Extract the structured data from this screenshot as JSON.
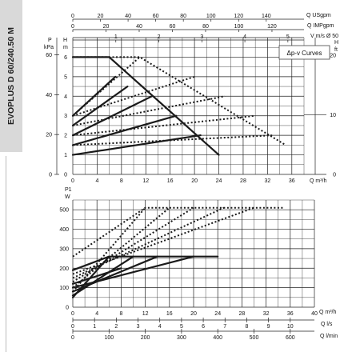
{
  "product": "EVOPLUS D 60/240.50 M",
  "legend": "Δp-v Curves",
  "top": {
    "units": {
      "usgpm": "Q USgpm",
      "impgpm": "Q IMPgpm",
      "vel": "V m/s Ø 50",
      "p": "P",
      "kpa": "kPa",
      "h": "H",
      "m": "m",
      "hft": "H",
      "ft": "ft",
      "q": "Q m³/h"
    },
    "ticks": {
      "usgpm": [
        "0",
        "20",
        "40",
        "60",
        "80",
        "100",
        "120",
        "140"
      ],
      "impgpm": [
        "0",
        "20",
        "40",
        "60",
        "80",
        "100",
        "120"
      ],
      "vel": [
        "1",
        "2",
        "3",
        "4",
        "5"
      ],
      "kpa": [
        "0",
        "20",
        "40",
        "60"
      ],
      "hm": [
        "0",
        "1",
        "2",
        "3",
        "4",
        "5",
        "6"
      ],
      "ft": [
        "0",
        "10",
        "20"
      ],
      "q": [
        "0",
        "4",
        "8",
        "12",
        "16",
        "20",
        "24",
        "28",
        "32",
        "36"
      ]
    }
  },
  "bottom": {
    "units": {
      "p1": "P1",
      "w": "W",
      "q": "Q m³/h",
      "ls": "Q l/s",
      "lmin": "Q l/min"
    },
    "ticks": {
      "w": [
        "0",
        "100",
        "200",
        "300",
        "400",
        "500"
      ],
      "q": [
        "0",
        "4",
        "8",
        "12",
        "16",
        "20",
        "24",
        "28",
        "32",
        "36",
        "40"
      ],
      "ls": [
        "0",
        "1",
        "2",
        "3",
        "4",
        "5",
        "6",
        "7",
        "8",
        "9",
        "10"
      ],
      "lmin": [
        "0",
        "100",
        "200",
        "300",
        "400",
        "500",
        "600"
      ]
    }
  },
  "chart_data": [
    {
      "type": "line",
      "title": "",
      "xlabel": "Q m³/h",
      "ylabel": "H m",
      "xlim": [
        0,
        38
      ],
      "ylim": [
        0,
        7
      ],
      "series": [
        {
          "style": "solid",
          "points": [
            [
              0,
              6
            ],
            [
              6,
              6
            ],
            [
              24,
              1
            ]
          ]
        },
        {
          "style": "solid",
          "points": [
            [
              0,
              1
            ],
            [
              21,
              2
            ]
          ]
        },
        {
          "style": "solid",
          "points": [
            [
              0,
              1.5
            ],
            [
              17,
              3
            ]
          ]
        },
        {
          "style": "solid",
          "points": [
            [
              0,
              2
            ],
            [
              13,
              4
            ]
          ]
        },
        {
          "style": "solid",
          "points": [
            [
              0,
              2.5
            ],
            [
              9,
              4.5
            ]
          ]
        },
        {
          "style": "solid",
          "points": [
            [
              0,
              3
            ],
            [
              7,
              5
            ]
          ]
        },
        {
          "style": "dotted",
          "points": [
            [
              0,
              6
            ],
            [
              11,
              6
            ],
            [
              35,
              1.5
            ]
          ]
        },
        {
          "style": "dotted",
          "points": [
            [
              0,
              1.5
            ],
            [
              33,
              2
            ]
          ]
        },
        {
          "style": "dotted",
          "points": [
            [
              0,
              2
            ],
            [
              30,
              3
            ]
          ]
        },
        {
          "style": "dotted",
          "points": [
            [
              0,
              2.5
            ],
            [
              25,
              4
            ]
          ]
        },
        {
          "style": "dotted",
          "points": [
            [
              0,
              3
            ],
            [
              20,
              5
            ]
          ]
        },
        {
          "style": "dotted",
          "points": [
            [
              0,
              3
            ],
            [
              11,
              6
            ]
          ]
        }
      ]
    },
    {
      "type": "line",
      "title": "",
      "xlabel": "Q m³/h",
      "ylabel": "P1 W",
      "xlim": [
        0,
        40
      ],
      "ylim": [
        0,
        550
      ],
      "series": [
        {
          "style": "solid",
          "points": [
            [
              0,
              190
            ],
            [
              6,
              260
            ]
          ]
        },
        {
          "style": "solid",
          "points": [
            [
              0,
              50
            ],
            [
              6,
              260
            ],
            [
              24,
              260
            ]
          ]
        },
        {
          "style": "solid",
          "points": [
            [
              0,
              60
            ],
            [
              10,
              260
            ]
          ]
        },
        {
          "style": "solid",
          "points": [
            [
              0,
              80
            ],
            [
              14,
              260
            ]
          ]
        },
        {
          "style": "solid",
          "points": [
            [
              0,
              100
            ],
            [
              20,
              260
            ]
          ]
        },
        {
          "style": "solid",
          "points": [
            [
              0,
              120
            ],
            [
              8,
              200
            ]
          ]
        },
        {
          "style": "dotted",
          "points": [
            [
              0,
              260
            ],
            [
              12,
              510
            ],
            [
              35,
              510
            ]
          ]
        },
        {
          "style": "dotted",
          "points": [
            [
              0,
              80
            ],
            [
              12,
              510
            ]
          ]
        },
        {
          "style": "dotted",
          "points": [
            [
              0,
              100
            ],
            [
              16,
              510
            ]
          ]
        },
        {
          "style": "dotted",
          "points": [
            [
              0,
              130
            ],
            [
              20,
              510
            ]
          ]
        },
        {
          "style": "dotted",
          "points": [
            [
              0,
              150
            ],
            [
              25,
              510
            ]
          ]
        },
        {
          "style": "dotted",
          "points": [
            [
              0,
              170
            ],
            [
              30,
              510
            ]
          ]
        }
      ]
    }
  ]
}
